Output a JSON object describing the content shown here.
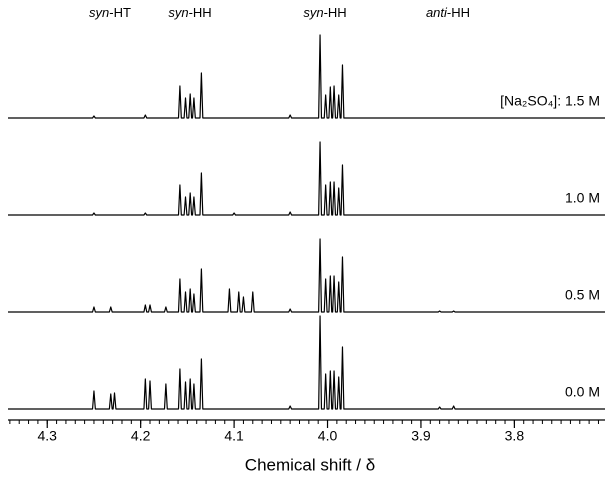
{
  "chart_data": {
    "type": "line",
    "xlabel": "Chemical shift / δ",
    "annotations": [
      "syn-HT",
      "syn-HH",
      "syn-HH",
      "anti-HH"
    ],
    "xlim": [
      4.342,
      3.703
    ],
    "xticks": [
      4.3,
      4.2,
      4.1,
      {
        "value": 4,
        "label": "4.0"
      },
      3.9,
      3.8
    ],
    "ylim": [
      0,
      100
    ],
    "x": [
      4.342,
      4.2515,
      4.25,
      4.2485,
      4.2335,
      4.232,
      4.2305,
      4.2295,
      4.228,
      4.2265,
      4.1965,
      4.195,
      4.1935,
      4.1915,
      4.19,
      4.1885,
      4.1745,
      4.173,
      4.1715,
      4.1595,
      4.158,
      4.1565,
      4.1535,
      4.152,
      4.1505,
      4.1485,
      4.147,
      4.1455,
      4.1445,
      4.143,
      4.1415,
      4.1365,
      4.135,
      4.1335,
      4.1065,
      4.105,
      4.1035,
      4.1015,
      4.1,
      4.0985,
      4.0965,
      4.095,
      4.0935,
      4.0915,
      4.09,
      4.0885,
      4.0815,
      4.08,
      4.0785,
      4.0415,
      4.04,
      4.0385,
      4.0095,
      4.008,
      4.0065,
      4.0035,
      4.002,
      4.0005,
      3.9985,
      3.997,
      3.9955,
      3.9945,
      3.993,
      3.9915,
      3.9895,
      3.988,
      3.9865,
      3.9855,
      3.984,
      3.9825,
      3.8815,
      3.88,
      3.8785,
      3.8665,
      3.865,
      3.8635,
      3.703
    ],
    "series": [
      {
        "name": "[Na₂SO₄]: 1.5 M",
        "color": "#000000",
        "values": [
          0,
          0,
          2,
          0,
          0,
          0,
          0,
          0,
          0,
          0,
          0,
          3,
          0,
          0,
          0,
          0,
          0,
          0,
          0,
          0,
          32,
          0,
          0,
          20,
          0,
          0,
          24,
          0,
          0,
          20,
          0,
          0,
          45,
          0,
          0,
          0,
          0,
          0,
          0,
          0,
          0,
          0,
          0,
          0,
          0,
          0,
          0,
          0,
          0,
          0,
          3,
          0,
          0,
          83,
          0,
          0,
          23,
          0,
          0,
          31,
          0,
          0,
          32,
          0,
          0,
          23,
          0,
          0,
          53,
          0,
          0,
          0,
          0,
          0,
          0,
          0,
          0
        ]
      },
      {
        "name": "1.0 M",
        "color": "#000000",
        "values": [
          0,
          0,
          2,
          0,
          0,
          0,
          0,
          0,
          0,
          0,
          0,
          2,
          0,
          0,
          0,
          0,
          0,
          0,
          0,
          0,
          30,
          0,
          0,
          18,
          0,
          0,
          22,
          0,
          0,
          18,
          0,
          0,
          42,
          0,
          0,
          0,
          0,
          0,
          2,
          0,
          0,
          0,
          0,
          0,
          0,
          0,
          0,
          0,
          0,
          0,
          3,
          0,
          0,
          73,
          0,
          0,
          30,
          0,
          0,
          33,
          0,
          0,
          33,
          0,
          0,
          27,
          0,
          0,
          50,
          0,
          0,
          0,
          0,
          0,
          0,
          0,
          0
        ]
      },
      {
        "name": "0.5 M",
        "color": "#000000",
        "values": [
          0,
          0,
          5,
          0,
          0,
          5,
          0,
          0,
          0,
          0,
          0,
          7,
          0,
          0,
          7,
          0,
          0,
          5,
          0,
          0,
          33,
          0,
          0,
          20,
          0,
          0,
          23,
          0,
          0,
          18,
          0,
          0,
          43,
          0,
          0,
          23,
          0,
          0,
          0,
          0,
          0,
          20,
          0,
          0,
          15,
          0,
          0,
          20,
          0,
          0,
          3,
          0,
          0,
          73,
          0,
          0,
          33,
          0,
          0,
          36,
          0,
          0,
          36,
          0,
          0,
          30,
          0,
          0,
          55,
          0,
          0,
          1,
          0,
          0,
          1,
          0,
          0
        ]
      },
      {
        "name": "0.0 M",
        "color": "#000000",
        "values": [
          0,
          0,
          18,
          0,
          0,
          15,
          0,
          0,
          16,
          0,
          0,
          30,
          0,
          0,
          28,
          0,
          0,
          25,
          0,
          0,
          40,
          0,
          0,
          27,
          0,
          0,
          30,
          0,
          0,
          25,
          0,
          0,
          50,
          0,
          0,
          0,
          0,
          0,
          0,
          0,
          0,
          0,
          0,
          0,
          0,
          0,
          0,
          0,
          0,
          0,
          3,
          0,
          0,
          93,
          0,
          0,
          35,
          0,
          0,
          38,
          0,
          0,
          38,
          0,
          0,
          32,
          0,
          0,
          62,
          0,
          0,
          2,
          0,
          0,
          3,
          0,
          0
        ]
      }
    ]
  }
}
